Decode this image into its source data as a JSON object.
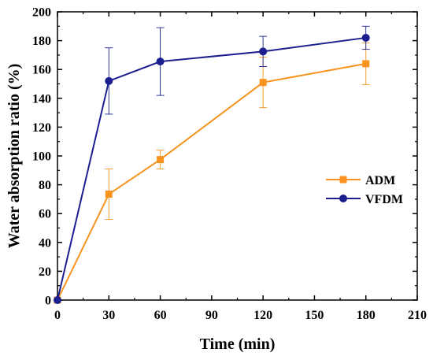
{
  "chart_data": {
    "type": "line",
    "title": "",
    "xlabel": "Time (min)",
    "ylabel": "Water absorption ratio (%)",
    "xlim": [
      0,
      210
    ],
    "ylim": [
      0,
      200
    ],
    "xticks": [
      0,
      30,
      60,
      90,
      120,
      150,
      180,
      210
    ],
    "yticks": [
      0,
      20,
      40,
      60,
      80,
      100,
      120,
      140,
      160,
      180,
      200
    ],
    "grid": false,
    "legend_position": "right-middle",
    "series": [
      {
        "name": "ADM",
        "color": "#f7931e",
        "marker": "square",
        "x": [
          0,
          30,
          60,
          120,
          180
        ],
        "y": [
          0,
          73.5,
          97.5,
          151,
          164
        ],
        "error": [
          0,
          17.5,
          6.5,
          17.5,
          14.5
        ]
      },
      {
        "name": "VFDM",
        "color": "#1b1f8f",
        "marker": "circle",
        "x": [
          0,
          30,
          60,
          120,
          180
        ],
        "y": [
          0,
          152,
          165.5,
          172.5,
          182
        ],
        "error": [
          0,
          23,
          23.5,
          10.5,
          8
        ]
      }
    ]
  }
}
